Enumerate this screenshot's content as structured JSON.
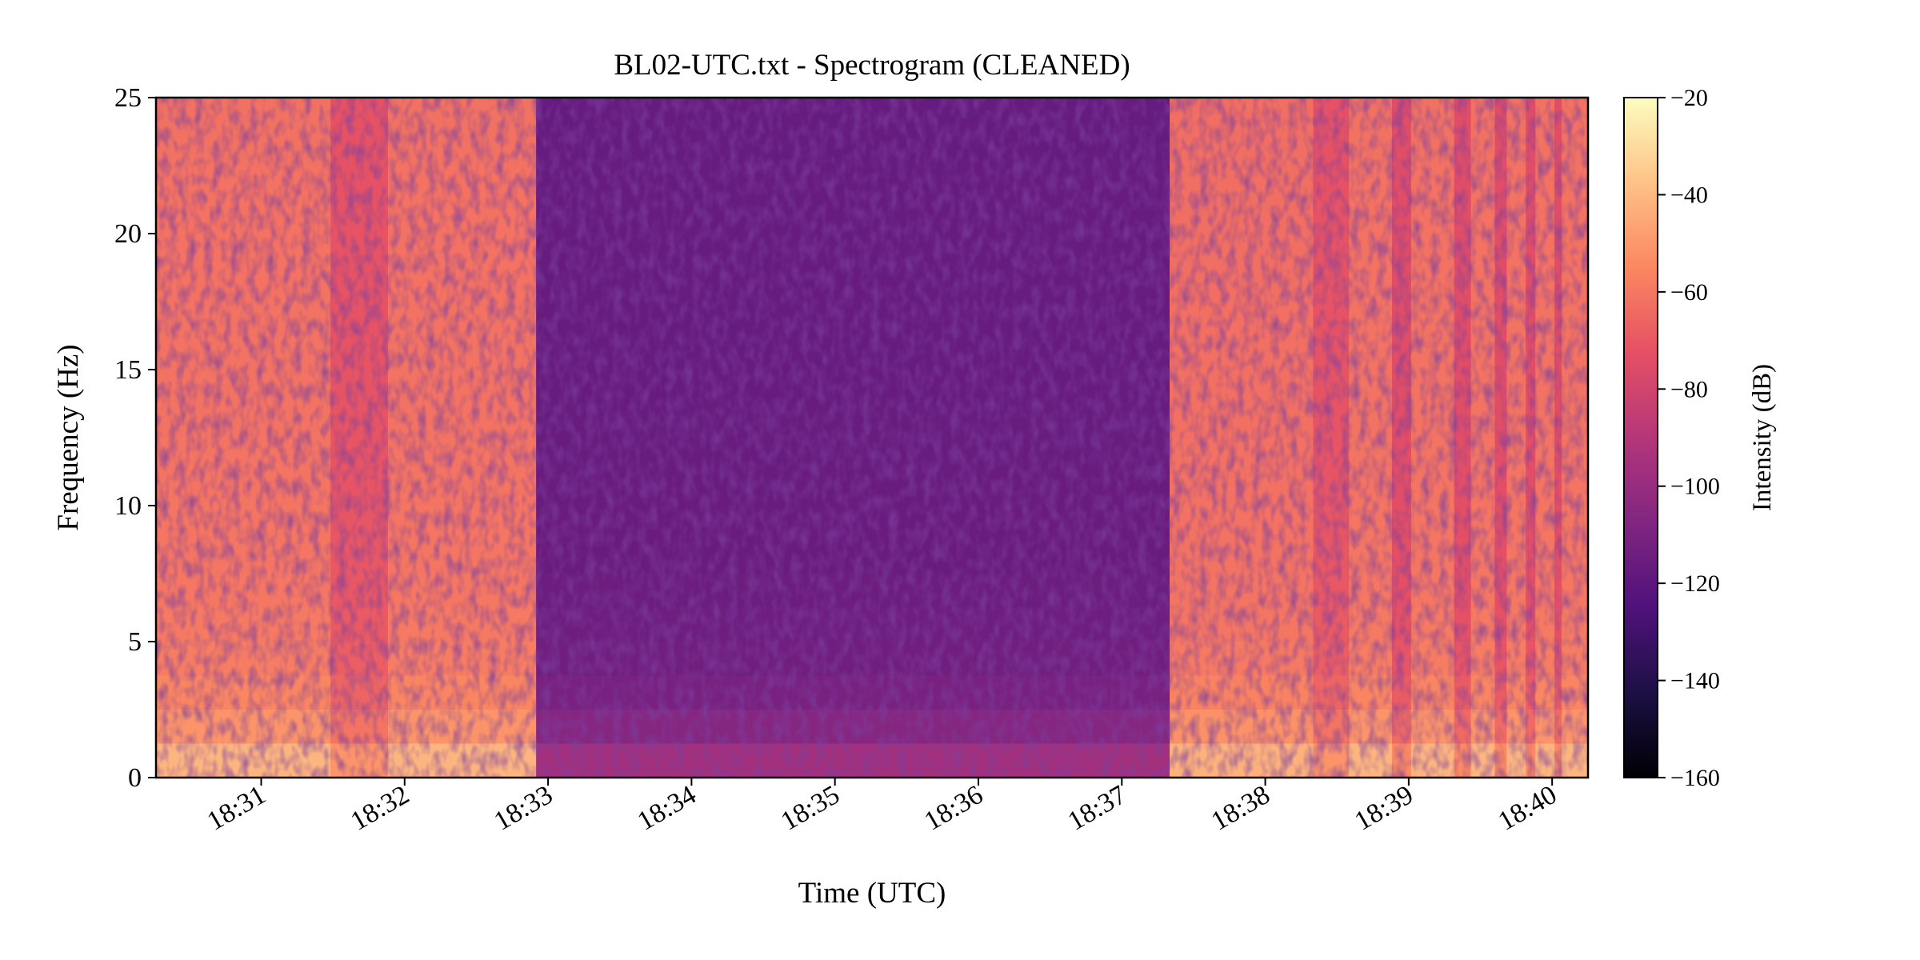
{
  "chart_data": {
    "type": "heatmap",
    "title": "BL02-UTC.txt - Spectrogram (CLEANED)",
    "xlabel": "Time (UTC)",
    "ylabel": "Frequency (Hz)",
    "x_ticks": [
      "18:31",
      "18:32",
      "18:33",
      "18:34",
      "18:35",
      "18:36",
      "18:37",
      "18:38",
      "18:39",
      "18:40"
    ],
    "xlim": [
      "18:30:16",
      "18:40:15"
    ],
    "ylim": [
      0,
      25
    ],
    "y_ticks": [
      0,
      5,
      10,
      15,
      20,
      25
    ],
    "colorbar": {
      "label": "Intensity (dB)",
      "colormap": "magma",
      "range": [
        -160,
        -20
      ],
      "ticks": [
        -20,
        -40,
        -60,
        -80,
        -100,
        -120,
        -140,
        -160
      ],
      "tick_labels": [
        "−20",
        "−40",
        "−60",
        "−80",
        "−100",
        "−120",
        "−140",
        "−160"
      ]
    },
    "segments": [
      {
        "start": "18:30:16",
        "end": "18:31:29",
        "intensity_db": -62
      },
      {
        "start": "18:31:29",
        "end": "18:31:53",
        "intensity_db": -72
      },
      {
        "start": "18:31:53",
        "end": "18:32:55",
        "intensity_db": -62
      },
      {
        "start": "18:32:55",
        "end": "18:37:20",
        "intensity_db": -117
      },
      {
        "start": "18:37:20",
        "end": "18:38:20",
        "intensity_db": -63
      },
      {
        "start": "18:38:20",
        "end": "18:38:35",
        "intensity_db": -72
      },
      {
        "start": "18:38:35",
        "end": "18:38:53",
        "intensity_db": -62
      },
      {
        "start": "18:38:53",
        "end": "18:39:01",
        "intensity_db": -75
      },
      {
        "start": "18:39:01",
        "end": "18:39:19",
        "intensity_db": -62
      },
      {
        "start": "18:39:19",
        "end": "18:39:26",
        "intensity_db": -75
      },
      {
        "start": "18:39:26",
        "end": "18:39:36",
        "intensity_db": -62
      },
      {
        "start": "18:39:36",
        "end": "18:39:41",
        "intensity_db": -75
      },
      {
        "start": "18:39:41",
        "end": "18:39:49",
        "intensity_db": -62
      },
      {
        "start": "18:39:49",
        "end": "18:39:53",
        "intensity_db": -75
      },
      {
        "start": "18:39:53",
        "end": "18:40:01",
        "intensity_db": -62
      },
      {
        "start": "18:40:01",
        "end": "18:40:04",
        "intensity_db": -75
      },
      {
        "start": "18:40:04",
        "end": "18:40:15",
        "intensity_db": -62
      }
    ],
    "low_frequency_enhancement_db": 25
  }
}
